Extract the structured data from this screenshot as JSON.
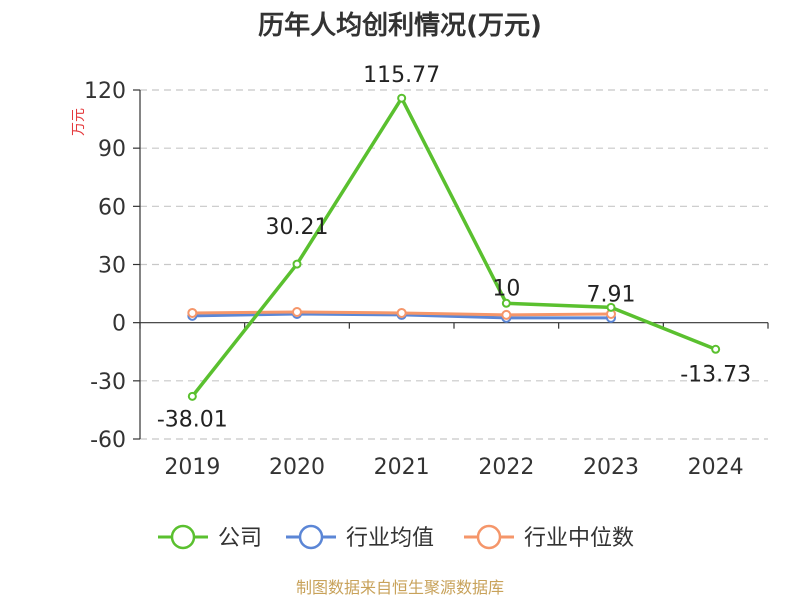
{
  "chart_data": {
    "type": "line",
    "title": "历年人均创利情况(万元)",
    "y_unit": "万元",
    "categories": [
      "2019",
      "2020",
      "2021",
      "2022",
      "2023",
      "2024"
    ],
    "ylim": [
      -60,
      120
    ],
    "yticks": [
      -60,
      -30,
      0,
      30,
      60,
      90,
      120
    ],
    "grid": true,
    "legend_position": "bottom",
    "series": [
      {
        "name": "公司",
        "color": "#5ac02f",
        "values": [
          -38.01,
          30.21,
          115.77,
          10,
          7.91,
          -13.73
        ],
        "labels": [
          "-38.01",
          "30.21",
          "115.77",
          "10",
          "7.91",
          "-13.73"
        ]
      },
      {
        "name": "行业均值",
        "color": "#5b86d6",
        "values": [
          3.5,
          4.5,
          4.0,
          2.5,
          2.5,
          null
        ]
      },
      {
        "name": "行业中位数",
        "color": "#f5966a",
        "values": [
          5.0,
          5.5,
          5.0,
          4.0,
          4.5,
          null
        ]
      }
    ],
    "source": "制图数据来自恒生聚源数据库"
  }
}
